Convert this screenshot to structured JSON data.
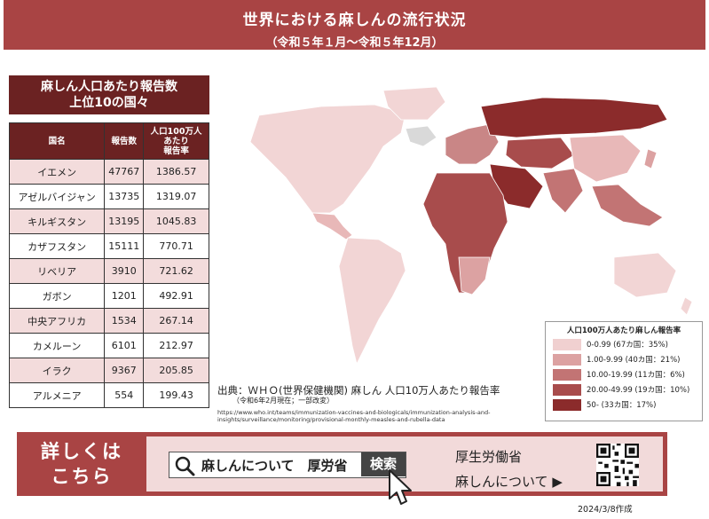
{
  "header": {
    "title": "世界における麻しんの流行状況",
    "period": "（令和５年１月〜令和５年12月）"
  },
  "table": {
    "title_line1": "麻しん人口あたり報告数",
    "title_line2": "上位10の国々",
    "headers": [
      "国名",
      "報告数",
      "人口100万人\nあたり\n報告率"
    ],
    "rows": [
      {
        "country": "イエメン",
        "reports": "47767",
        "rate": "1386.57"
      },
      {
        "country": "アゼルバイジャン",
        "reports": "13735",
        "rate": "1319.07"
      },
      {
        "country": "キルギスタン",
        "reports": "13195",
        "rate": "1045.83"
      },
      {
        "country": "カザフスタン",
        "reports": "15111",
        "rate": "770.71"
      },
      {
        "country": "リベリア",
        "reports": "3910",
        "rate": "721.62"
      },
      {
        "country": "ガボン",
        "reports": "1201",
        "rate": "492.91"
      },
      {
        "country": "中央アフリカ",
        "reports": "1534",
        "rate": "267.14"
      },
      {
        "country": "カメルーン",
        "reports": "6101",
        "rate": "212.97"
      },
      {
        "country": "イラク",
        "reports": "9367",
        "rate": "205.85"
      },
      {
        "country": "アルメニア",
        "reports": "554",
        "rate": "199.43"
      }
    ]
  },
  "legend": {
    "title": "人口100万人あたり麻しん報告率",
    "items": [
      {
        "label": "0-0.99 (67カ国：35%)",
        "color": "#f0d0d0"
      },
      {
        "label": "1.00-9.99 (40カ国：21%)",
        "color": "#dca2a2"
      },
      {
        "label": "10.00-19.99 (11カ国：6%)",
        "color": "#c27474"
      },
      {
        "label": "20.00-49.99 (19カ国：10%)",
        "color": "#a84c4c"
      },
      {
        "label": "50- (33カ国：17%)",
        "color": "#8b2b2b"
      }
    ]
  },
  "source": {
    "text": "出典：ＷＨＯ(世界保健機関) 麻しん 人口10万人あたり報告率",
    "note": "（令和6年2月現在；一部改変）",
    "url": "https://www.who.int/teams/immunization-vaccines-and-biologicals/immunization-analysis-and-insights/surveillance/monitoring/provisional-monthly-measles-and-rubella-data"
  },
  "banner": {
    "more_line1": "詳しくは",
    "more_line2": "こちら",
    "search_query": "麻しんについて　厚労省",
    "search_button": "検索",
    "ministry": "厚生労働省",
    "link_text": "麻しんについて ▶"
  },
  "footer": {
    "created": "2024/3/8作成"
  },
  "colors": {
    "brand": "#a94444",
    "dark": "#6b2222",
    "no_data": "#d9d9d9"
  }
}
